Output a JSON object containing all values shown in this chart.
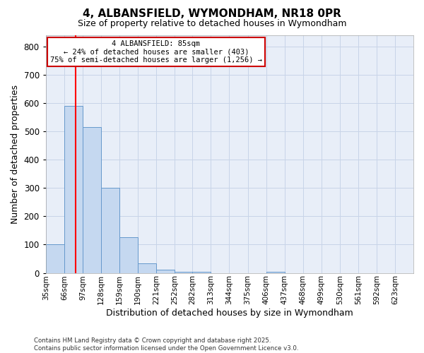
{
  "title1": "4, ALBANSFIELD, WYMONDHAM, NR18 0PR",
  "title2": "Size of property relative to detached houses in Wymondham",
  "xlabel": "Distribution of detached houses by size in Wymondham",
  "ylabel": "Number of detached properties",
  "bin_edges": [
    35,
    66,
    97,
    128,
    159,
    190,
    221,
    252,
    282,
    313,
    344,
    375,
    406,
    437,
    468,
    499,
    530,
    561,
    592,
    623,
    654
  ],
  "bar_heights": [
    100,
    590,
    515,
    300,
    125,
    35,
    12,
    5,
    3,
    0,
    0,
    0,
    5,
    0,
    0,
    0,
    0,
    0,
    0,
    0
  ],
  "bar_color": "#c5d8f0",
  "bar_edge_color": "#6699cc",
  "red_line_x": 85,
  "ylim": [
    0,
    840
  ],
  "yticks": [
    0,
    100,
    200,
    300,
    400,
    500,
    600,
    700,
    800
  ],
  "annotation_title": "4 ALBANSFIELD: 85sqm",
  "annotation_line1": "← 24% of detached houses are smaller (403)",
  "annotation_line2": "75% of semi-detached houses are larger (1,256) →",
  "annotation_box_color": "#ffffff",
  "annotation_box_edge_color": "#cc0000",
  "footer1": "Contains HM Land Registry data © Crown copyright and database right 2025.",
  "footer2": "Contains public sector information licensed under the Open Government Licence v3.0.",
  "background_color": "#ffffff",
  "grid_color": "#c8d4e8",
  "ax_bg_color": "#e8eef8"
}
